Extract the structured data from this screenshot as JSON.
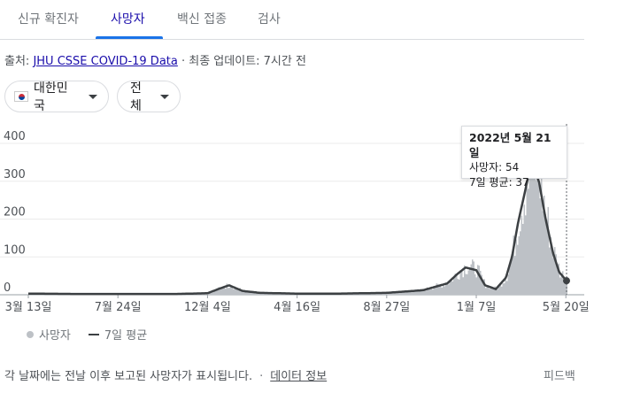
{
  "tabs": [
    {
      "label": "신규 확진자",
      "active": false
    },
    {
      "label": "사망자",
      "active": true
    },
    {
      "label": "백신 접종",
      "active": false
    },
    {
      "label": "검사",
      "active": false
    }
  ],
  "source": {
    "prefix": "출처: ",
    "link": "JHU CSSE COVID-19 Data",
    "suffix": " · 최종 업데이트: 7시간 전"
  },
  "filters": {
    "region": "대한민국",
    "range": "전체"
  },
  "tooltip": {
    "date": "2022년 5월 21일",
    "deaths_label": "사망자: 54",
    "avg_label": "7일 평균: 37"
  },
  "legend": {
    "daily": "사망자",
    "average": "7일 평균"
  },
  "footer": {
    "note": "각 날짜에는 전날 이후 보고된 사망자가 표시됩니다.",
    "separator": "·",
    "data_info": "데이터 정보",
    "feedback": "피드백"
  },
  "colors": {
    "bars": "#bdc1c6",
    "line": "#3c4043",
    "active_tab": "#1a73e8"
  },
  "chart_data": {
    "type": "area",
    "title": "",
    "xlabel": "",
    "ylabel": "",
    "ylim": [
      0,
      400
    ],
    "yticks": [
      0,
      100,
      200,
      300,
      400
    ],
    "xticks": [
      "3월 13일",
      "7월 24일",
      "12월 4일",
      "4월 16일",
      "8월 27일",
      "1월 7일",
      "5월 20일"
    ],
    "grid": true,
    "legend_position": "bottom-left",
    "series": [
      {
        "name": "7일 평균",
        "x": [
          "2020-03-13",
          "2020-06-01",
          "2020-07-24",
          "2020-10-15",
          "2020-12-04",
          "2020-12-20",
          "2021-01-05",
          "2021-01-25",
          "2021-02-20",
          "2021-04-16",
          "2021-06-15",
          "2021-08-27",
          "2021-10-20",
          "2021-11-25",
          "2021-12-10",
          "2021-12-22",
          "2022-01-07",
          "2022-01-20",
          "2022-02-05",
          "2022-02-20",
          "2022-03-01",
          "2022-03-10",
          "2022-03-20",
          "2022-03-26",
          "2022-04-02",
          "2022-04-10",
          "2022-04-20",
          "2022-05-01",
          "2022-05-10",
          "2022-05-21"
        ],
        "values": [
          3,
          2,
          2,
          2,
          4,
          15,
          25,
          10,
          5,
          3,
          3,
          5,
          12,
          30,
          55,
          72,
          65,
          25,
          15,
          45,
          100,
          190,
          270,
          320,
          330,
          300,
          200,
          110,
          60,
          37
        ]
      }
    ],
    "highlight": {
      "date": "2022-05-21",
      "deaths": 54,
      "average": 37
    }
  }
}
